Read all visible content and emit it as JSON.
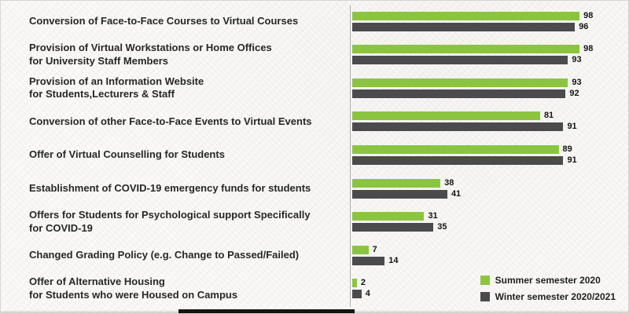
{
  "chart_data": {
    "type": "bar",
    "orientation": "horizontal",
    "title": "",
    "xlabel": "",
    "ylabel": "",
    "xlim": [
      0,
      100
    ],
    "grid": false,
    "legend_position": "bottom-right",
    "categories": [
      "Conversion of Face-to-Face Courses to Virtual Courses",
      "Provision of Virtual Workstations or Home Offices\nfor University Staff Members",
      "Provision of an Information Website\nfor Students,Lecturers & Staff",
      "Conversion of other Face-to-Face Events to Virtual Events",
      "Offer of Virtual Counselling for Students",
      "Establishment of COVID-19 emergency funds for students",
      "Offers for Students for Psychological support Specifically\nfor COVID-19",
      "Changed Grading Policy (e.g. Change to Passed/Failed)",
      "Offer of Alternative Housing\nfor Students who were Housed on Campus"
    ],
    "series": [
      {
        "name": "Summer semester 2020",
        "color": "#8bc53f",
        "values": [
          98,
          98,
          93,
          81,
          89,
          38,
          31,
          7,
          2
        ]
      },
      {
        "name": "Winter semester 2020/2021",
        "color": "#4b4b4d",
        "values": [
          96,
          93,
          92,
          91,
          91,
          41,
          35,
          14,
          4
        ]
      }
    ]
  }
}
